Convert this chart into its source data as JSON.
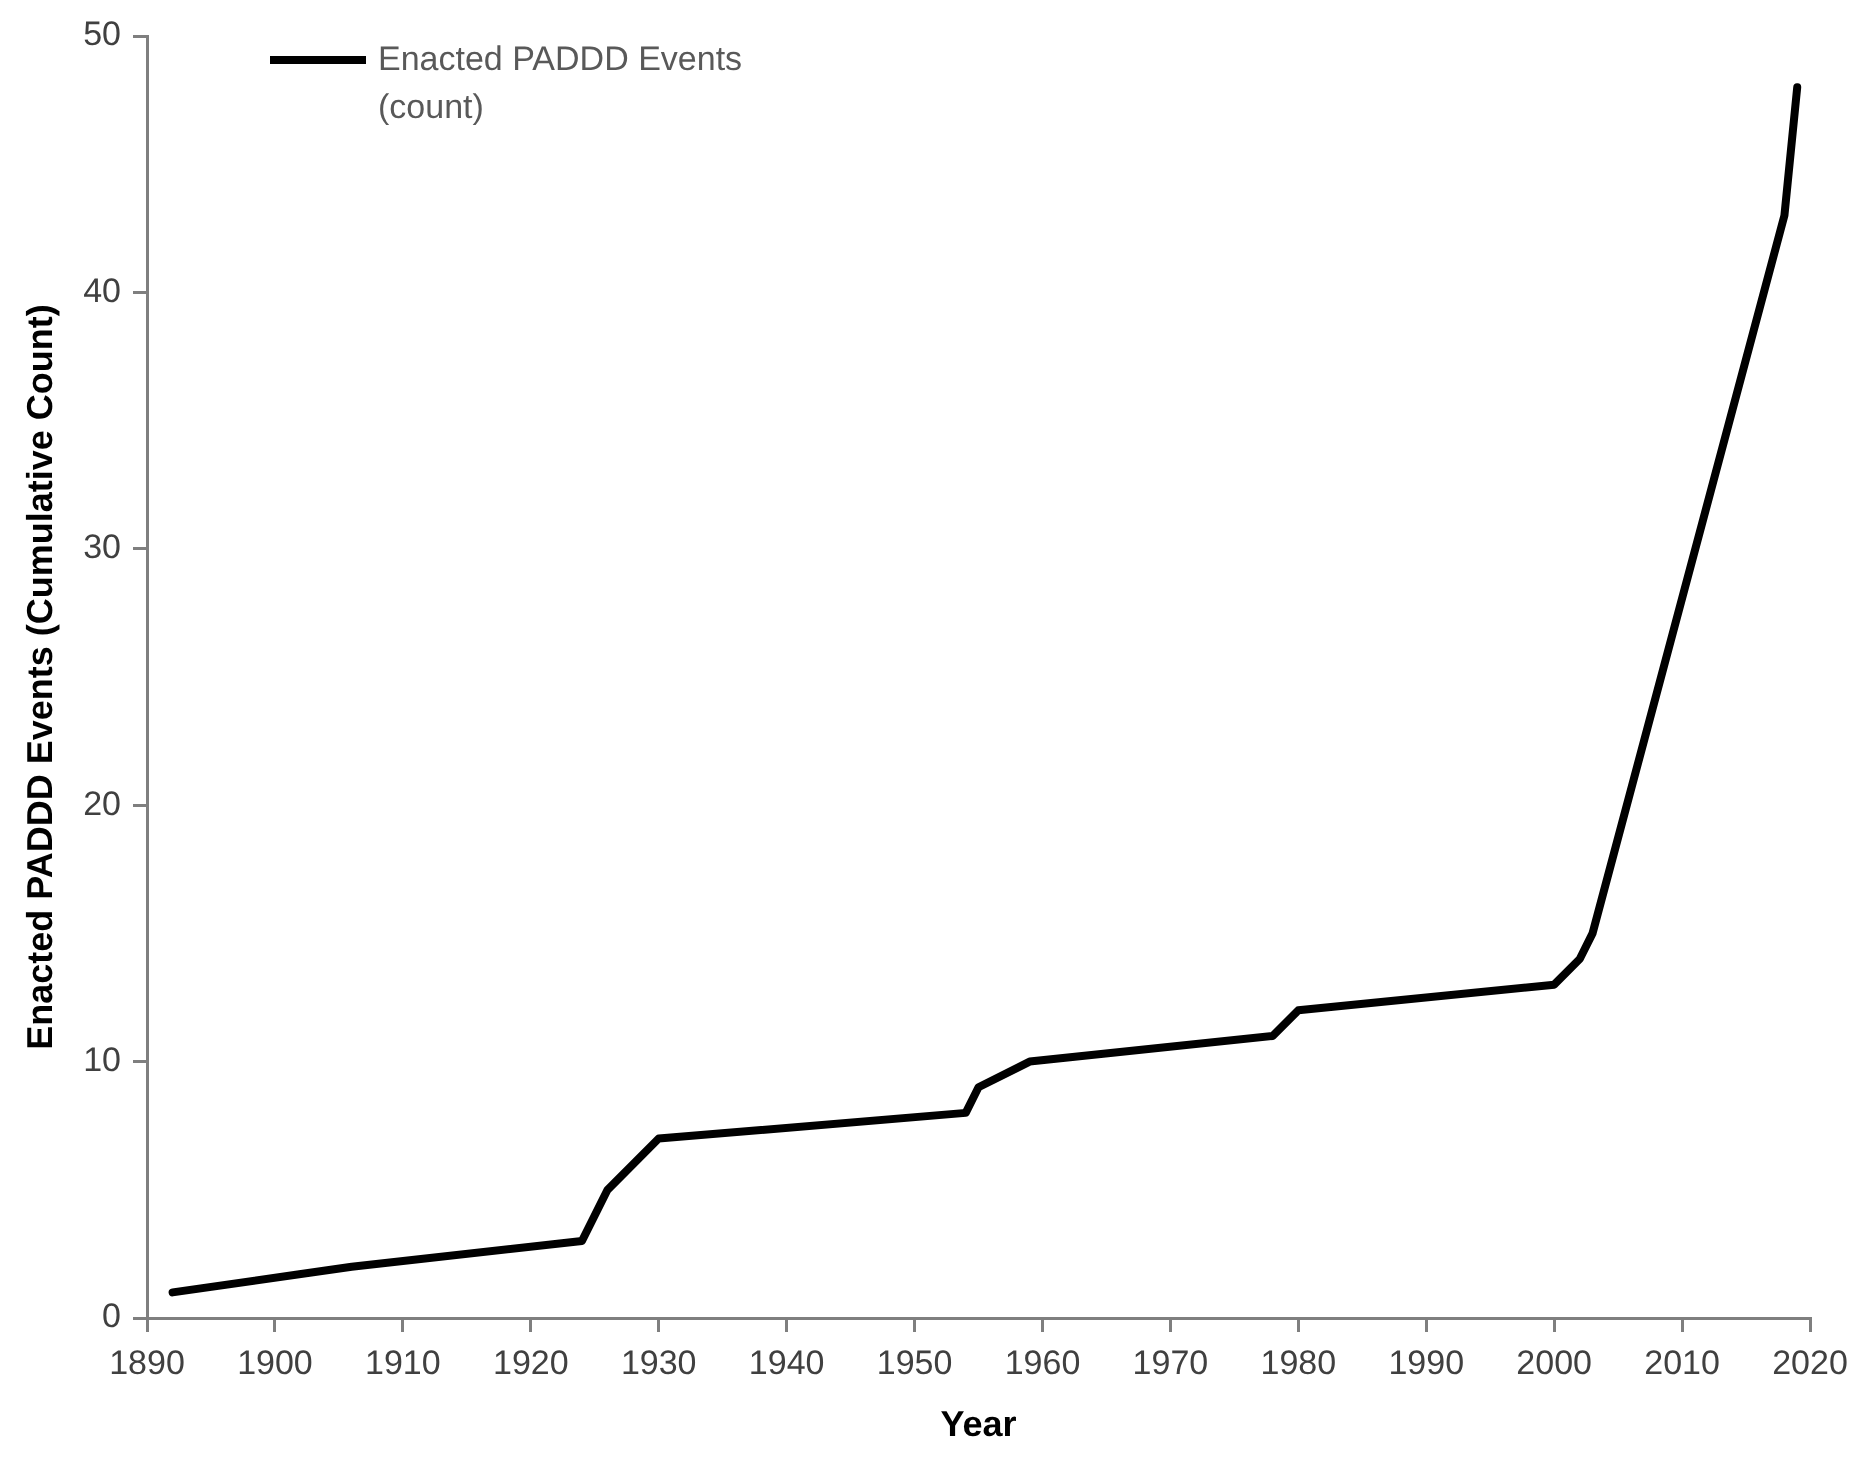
{
  "chart_data": {
    "type": "line",
    "xlabel": "Year",
    "ylabel": "Enacted PADDD Events (Cumulative Count)",
    "series": [
      {
        "name": "Enacted PADDD Events (count)",
        "color": "#000000",
        "x": [
          1892,
          1906,
          1924,
          1926,
          1930,
          1954,
          1955,
          1959,
          1978,
          1980,
          2000,
          2002,
          2003,
          2018,
          2019
        ],
        "values": [
          1,
          2,
          3,
          5,
          7,
          8,
          9,
          10,
          11,
          12,
          13,
          14,
          15,
          43,
          48
        ]
      }
    ],
    "xlim": [
      1890,
      2020
    ],
    "xticks": [
      1890,
      1900,
      1910,
      1920,
      1930,
      1940,
      1950,
      1960,
      1970,
      1980,
      1990,
      2000,
      2010,
      2020
    ],
    "ylim": [
      0,
      50
    ],
    "yticks": [
      0,
      10,
      20,
      30,
      40,
      50
    ],
    "grid": false,
    "legend": "top left",
    "marker": "none",
    "line_style": "solid"
  }
}
